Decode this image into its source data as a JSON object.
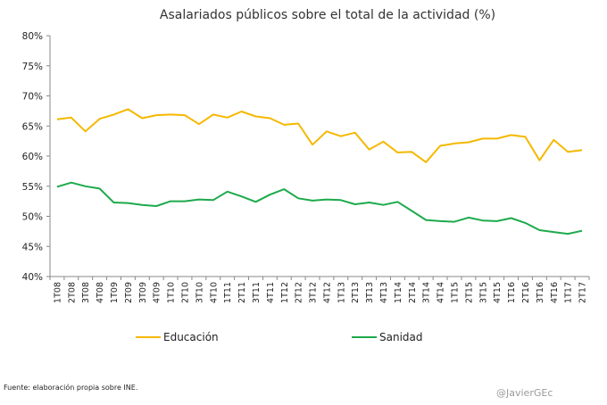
{
  "chart_data": {
    "type": "line",
    "title": "Asalariados públicos sobre el total de la actividad (%)",
    "xlabel": "",
    "ylabel": "",
    "ylim": [
      40,
      80
    ],
    "yticks": [
      40,
      45,
      50,
      55,
      60,
      65,
      70,
      75,
      80
    ],
    "ytick_labels": [
      "40%",
      "45%",
      "50%",
      "55%",
      "60%",
      "65%",
      "70%",
      "75%",
      "80%"
    ],
    "grid": false,
    "legend_position": "bottom",
    "categories": [
      "1T08",
      "2T08",
      "3T08",
      "4T08",
      "1T09",
      "2T09",
      "3T09",
      "4T09",
      "1T10",
      "2T10",
      "3T10",
      "4T10",
      "1T11",
      "2T11",
      "3T11",
      "4T11",
      "1T12",
      "2T12",
      "3T12",
      "4T12",
      "1T13",
      "2T13",
      "3T13",
      "4T13",
      "1T14",
      "2T14",
      "3T14",
      "4T14",
      "1T15",
      "2T15",
      "3T15",
      "4T15",
      "1T16",
      "2T16",
      "3T16",
      "4T16",
      "1T17",
      "2T17"
    ],
    "series": [
      {
        "name": "Educación",
        "color": "#F5B800",
        "values": [
          66.1,
          66.4,
          64.1,
          66.2,
          66.9,
          67.8,
          66.3,
          66.8,
          66.9,
          66.8,
          65.3,
          66.9,
          66.4,
          67.4,
          66.6,
          66.3,
          65.2,
          65.4,
          61.9,
          64.1,
          63.3,
          63.9,
          61.1,
          62.4,
          60.6,
          60.7,
          59.0,
          61.7,
          62.1,
          62.3,
          62.9,
          62.9,
          63.5,
          63.2,
          59.3,
          62.7,
          60.7,
          61.0
        ]
      },
      {
        "name": "Sanidad",
        "color": "#1DAA4B",
        "values": [
          54.9,
          55.6,
          55.0,
          54.6,
          52.3,
          52.2,
          51.9,
          51.7,
          52.5,
          52.5,
          52.8,
          52.7,
          54.1,
          53.3,
          52.4,
          53.6,
          54.5,
          53.0,
          52.6,
          52.8,
          52.7,
          52.0,
          52.3,
          51.9,
          52.4,
          50.9,
          49.4,
          49.2,
          49.1,
          49.8,
          49.3,
          49.2,
          49.7,
          48.9,
          47.7,
          47.4,
          47.1,
          47.6
        ]
      }
    ]
  },
  "footer": {
    "source": "Fuente: elaboración propia sobre INE.",
    "watermark": "@JavierGEc"
  }
}
